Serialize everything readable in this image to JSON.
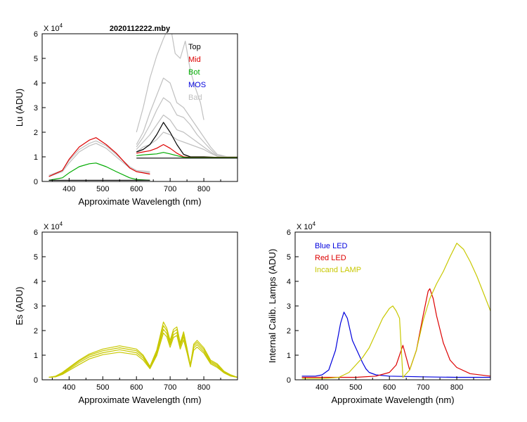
{
  "chart_data": [
    {
      "id": "lu",
      "type": "line",
      "title": "2020112222.mby",
      "xlabel": "Approximate Wavelength (nm)",
      "ylabel": "Lu (ADU)",
      "exponent_label": "X 10",
      "exponent_power": "4",
      "xlim": [
        320,
        900
      ],
      "ylim": [
        0,
        6
      ],
      "xticks": [
        400,
        500,
        600,
        700,
        800
      ],
      "xtick_labels": [
        "400",
        "500",
        "600",
        "700",
        "800"
      ],
      "yticks": [
        0,
        1,
        2,
        3,
        4,
        5,
        6
      ],
      "ytick_labels": [
        "0",
        "1",
        "2",
        "3",
        "4",
        "5",
        "6"
      ],
      "legend": [
        {
          "label": "Top",
          "color": "#000000"
        },
        {
          "label": "Mid",
          "color": "#dd0000"
        },
        {
          "label": "Bot",
          "color": "#00aa00"
        },
        {
          "label": "MOS",
          "color": "#0000dd"
        },
        {
          "label": "Bad",
          "color": "#c0c0c0"
        }
      ],
      "series": [
        {
          "name": "Bad",
          "color": "#c0c0c0",
          "x": [
            340,
            380,
            400,
            430,
            460,
            480,
            510,
            540,
            580,
            600,
            640
          ],
          "y": [
            0.25,
            0.45,
            0.85,
            1.3,
            1.55,
            1.65,
            1.45,
            1.1,
            0.6,
            0.45,
            0.4
          ]
        },
        {
          "name": "Bad",
          "color": "#c0c0c0",
          "x": [
            340,
            380,
            400,
            430,
            460,
            480,
            510,
            540,
            580,
            600,
            640
          ],
          "y": [
            0.2,
            0.4,
            0.75,
            1.2,
            1.45,
            1.55,
            1.35,
            1.0,
            0.55,
            0.4,
            0.35
          ]
        },
        {
          "name": "Bad",
          "color": "#c0c0c0",
          "x": [
            600,
            620,
            640,
            660,
            680,
            700,
            720,
            740,
            760,
            780,
            800,
            820,
            840,
            870,
            900
          ],
          "y": [
            1.5,
            2.0,
            2.8,
            3.5,
            4.2,
            4.0,
            3.2,
            3.0,
            2.6,
            2.2,
            1.8,
            1.4,
            1.1,
            1.0,
            1.0
          ]
        },
        {
          "name": "Bad",
          "color": "#c0c0c0",
          "x": [
            600,
            620,
            640,
            660,
            680,
            700,
            720,
            740,
            760,
            780,
            800,
            820,
            840,
            870,
            900
          ],
          "y": [
            1.4,
            1.8,
            2.3,
            2.9,
            3.4,
            3.2,
            2.7,
            2.6,
            2.3,
            1.9,
            1.6,
            1.3,
            1.05,
            1.0,
            1.0
          ]
        },
        {
          "name": "Bad",
          "color": "#c0c0c0",
          "x": [
            600,
            620,
            640,
            660,
            680,
            700,
            720,
            740,
            760,
            780,
            800,
            820,
            840,
            870,
            900
          ],
          "y": [
            1.3,
            1.6,
            1.9,
            2.3,
            2.7,
            2.5,
            2.1,
            2.0,
            1.8,
            1.6,
            1.4,
            1.2,
            1.02,
            1.0,
            1.0
          ]
        },
        {
          "name": "Bad",
          "color": "#c0c0c0",
          "x": [
            600,
            620,
            640,
            660,
            680,
            700,
            720,
            740,
            760,
            780,
            800,
            820,
            840,
            870,
            900
          ],
          "y": [
            1.2,
            1.4,
            1.5,
            1.7,
            2.0,
            1.9,
            1.7,
            1.6,
            1.5,
            1.4,
            1.3,
            1.15,
            1.02,
            1.0,
            1.0
          ]
        },
        {
          "name": "Bad",
          "color": "#c0c0c0",
          "x": [
            600,
            620,
            640,
            660,
            680,
            700,
            715,
            730,
            745,
            760,
            775,
            790,
            800
          ],
          "y": [
            2.0,
            3.0,
            4.2,
            5.1,
            5.8,
            6.4,
            5.2,
            5.0,
            5.7,
            4.5,
            3.8,
            3.2,
            2.5
          ]
        },
        {
          "name": "Mid",
          "color": "#dd0000",
          "x": [
            340,
            380,
            400,
            430,
            460,
            480,
            510,
            540,
            580,
            600,
            640
          ],
          "y": [
            0.2,
            0.45,
            0.9,
            1.4,
            1.68,
            1.78,
            1.5,
            1.15,
            0.55,
            0.4,
            0.3
          ]
        },
        {
          "name": "Top",
          "color": "#000000",
          "x": [
            600,
            620,
            640,
            660,
            680,
            700,
            720,
            740,
            760,
            780,
            800,
            840,
            880,
            900
          ],
          "y": [
            1.2,
            1.3,
            1.5,
            1.9,
            2.4,
            2.0,
            1.5,
            1.1,
            1.0,
            1.0,
            1.0,
            0.98,
            0.98,
            0.98
          ]
        },
        {
          "name": "Mid",
          "color": "#dd0000",
          "x": [
            600,
            620,
            640,
            660,
            680,
            700,
            720,
            740,
            760,
            800,
            840,
            880,
            900
          ],
          "y": [
            1.15,
            1.2,
            1.25,
            1.35,
            1.5,
            1.35,
            1.15,
            1.0,
            0.98,
            0.98,
            0.98,
            0.98,
            0.98
          ]
        },
        {
          "name": "Bot",
          "color": "#00aa00",
          "x": [
            340,
            380,
            400,
            430,
            460,
            480,
            510,
            540,
            580,
            600,
            640
          ],
          "y": [
            0.05,
            0.15,
            0.35,
            0.6,
            0.72,
            0.75,
            0.6,
            0.4,
            0.15,
            0.08,
            0.05
          ]
        },
        {
          "name": "Bot",
          "color": "#00aa00",
          "x": [
            600,
            620,
            640,
            660,
            680,
            700,
            720,
            740,
            760,
            800,
            840,
            880,
            900
          ],
          "y": [
            1.05,
            1.08,
            1.1,
            1.12,
            1.18,
            1.12,
            1.05,
            0.98,
            0.97,
            0.97,
            0.97,
            0.97,
            0.97
          ]
        },
        {
          "name": "Top",
          "color": "#000000",
          "x": [
            340,
            400,
            500,
            600,
            640
          ],
          "y": [
            0.05,
            0.05,
            0.05,
            0.05,
            0.05
          ]
        },
        {
          "name": "Top",
          "color": "#000000",
          "x": [
            600,
            700,
            800,
            900
          ],
          "y": [
            0.95,
            0.95,
            0.95,
            0.95
          ]
        }
      ]
    },
    {
      "id": "es",
      "type": "line",
      "title": "",
      "xlabel": "Approximate Wavelength (nm)",
      "ylabel": "Es  (ADU)",
      "exponent_label": "X 10",
      "exponent_power": "4",
      "xlim": [
        320,
        900
      ],
      "ylim": [
        0,
        6
      ],
      "xticks": [
        400,
        500,
        600,
        700,
        800
      ],
      "xtick_labels": [
        "400",
        "500",
        "600",
        "700",
        "800"
      ],
      "yticks": [
        0,
        1,
        2,
        3,
        4,
        5,
        6
      ],
      "ytick_labels": [
        "0",
        "1",
        "2",
        "3",
        "4",
        "5",
        "6"
      ],
      "legend": [],
      "series": [
        {
          "name": "Es",
          "color": "#c8c800",
          "x": [
            340,
            360,
            380,
            400,
            430,
            460,
            500,
            550,
            600,
            620,
            640,
            660,
            680,
            690,
            700,
            710,
            720,
            730,
            740,
            750,
            760,
            770,
            780,
            800,
            820,
            840,
            860,
            880,
            900
          ],
          "y": [
            0.1,
            0.15,
            0.3,
            0.5,
            0.8,
            1.05,
            1.25,
            1.38,
            1.25,
            1.0,
            0.55,
            1.2,
            2.35,
            2.1,
            1.6,
            2.05,
            2.15,
            1.5,
            1.95,
            1.3,
            0.6,
            1.45,
            1.6,
            1.3,
            0.8,
            0.65,
            0.35,
            0.2,
            0.1
          ]
        },
        {
          "name": "Es",
          "color": "#c8c800",
          "x": [
            340,
            360,
            380,
            400,
            430,
            460,
            500,
            550,
            600,
            620,
            640,
            660,
            680,
            690,
            700,
            710,
            720,
            730,
            740,
            750,
            760,
            770,
            780,
            800,
            820,
            840,
            860,
            880,
            900
          ],
          "y": [
            0.1,
            0.14,
            0.28,
            0.47,
            0.76,
            1.0,
            1.18,
            1.3,
            1.18,
            0.95,
            0.5,
            1.12,
            2.2,
            2.0,
            1.5,
            1.95,
            2.05,
            1.42,
            1.85,
            1.25,
            0.6,
            1.38,
            1.52,
            1.23,
            0.75,
            0.6,
            0.33,
            0.18,
            0.1
          ]
        },
        {
          "name": "Es",
          "color": "#c8c800",
          "x": [
            340,
            360,
            380,
            400,
            430,
            460,
            500,
            550,
            600,
            620,
            640,
            660,
            680,
            690,
            700,
            710,
            720,
            730,
            740,
            750,
            760,
            770,
            780,
            800,
            820,
            840,
            860,
            880,
            900
          ],
          "y": [
            0.1,
            0.13,
            0.25,
            0.43,
            0.7,
            0.93,
            1.1,
            1.22,
            1.1,
            0.88,
            0.48,
            1.05,
            2.05,
            1.88,
            1.42,
            1.83,
            1.92,
            1.35,
            1.75,
            1.18,
            0.55,
            1.3,
            1.43,
            1.15,
            0.7,
            0.55,
            0.3,
            0.16,
            0.1
          ]
        },
        {
          "name": "Es",
          "color": "#c8c800",
          "x": [
            340,
            360,
            380,
            400,
            430,
            460,
            500,
            550,
            600,
            620,
            640,
            660,
            680,
            690,
            700,
            710,
            720,
            730,
            740,
            750,
            760,
            770,
            780,
            800,
            820,
            840,
            860,
            880,
            900
          ],
          "y": [
            0.1,
            0.12,
            0.22,
            0.38,
            0.62,
            0.85,
            1.02,
            1.12,
            1.02,
            0.8,
            0.45,
            0.98,
            1.9,
            1.75,
            1.32,
            1.72,
            1.8,
            1.25,
            1.62,
            1.1,
            0.52,
            1.2,
            1.33,
            1.08,
            0.65,
            0.5,
            0.28,
            0.15,
            0.1
          ]
        }
      ]
    },
    {
      "id": "lamps",
      "type": "line",
      "title": "",
      "xlabel": "Approximate Wavelength (nm)",
      "ylabel": "Internal Calib. Lamps  (ADU)",
      "exponent_label": "X 10",
      "exponent_power": "4",
      "xlim": [
        320,
        900
      ],
      "ylim": [
        0,
        6
      ],
      "xticks": [
        400,
        500,
        600,
        700,
        800
      ],
      "xtick_labels": [
        "400",
        "500",
        "600",
        "700",
        "800"
      ],
      "yticks": [
        0,
        1,
        2,
        3,
        4,
        5,
        6
      ],
      "ytick_labels": [
        "0",
        "1",
        "2",
        "3",
        "4",
        "5",
        "6"
      ],
      "legend": [
        {
          "label": "Blue LED",
          "color": "#0000dd"
        },
        {
          "label": "Red LED",
          "color": "#dd0000"
        },
        {
          "label": "Incand LAMP",
          "color": "#c8c800"
        }
      ],
      "series": [
        {
          "name": "Blue LED",
          "color": "#0000dd",
          "x": [
            340,
            380,
            400,
            420,
            440,
            455,
            465,
            475,
            490,
            500,
            510,
            520,
            530,
            540,
            560,
            600,
            700,
            800,
            900
          ],
          "y": [
            0.15,
            0.15,
            0.2,
            0.4,
            1.2,
            2.3,
            2.75,
            2.5,
            1.6,
            1.3,
            1.0,
            0.7,
            0.45,
            0.3,
            0.2,
            0.15,
            0.12,
            0.1,
            0.1
          ]
        },
        {
          "name": "Red LED",
          "color": "#dd0000",
          "x": [
            340,
            400,
            500,
            560,
            600,
            620,
            640,
            660,
            680,
            700,
            715,
            720,
            730,
            740,
            760,
            780,
            800,
            840,
            900
          ],
          "y": [
            0.1,
            0.1,
            0.1,
            0.15,
            0.3,
            0.6,
            1.4,
            0.4,
            1.2,
            2.6,
            3.6,
            3.7,
            3.3,
            2.6,
            1.5,
            0.8,
            0.5,
            0.25,
            0.15
          ]
        },
        {
          "name": "Incand LAMP",
          "color": "#c8c800",
          "x": [
            340,
            400,
            450,
            480,
            500,
            520,
            540,
            560,
            580,
            600,
            610,
            620,
            630,
            640,
            660,
            680,
            700,
            720,
            740,
            760,
            780,
            800,
            820,
            840,
            860,
            880,
            900
          ],
          "y": [
            0.05,
            0.05,
            0.1,
            0.3,
            0.6,
            0.9,
            1.3,
            1.9,
            2.5,
            2.9,
            3.0,
            2.8,
            2.5,
            0.1,
            0.4,
            1.2,
            2.4,
            3.3,
            3.9,
            4.4,
            5.0,
            5.55,
            5.3,
            4.8,
            4.2,
            3.5,
            2.8
          ]
        }
      ]
    }
  ]
}
